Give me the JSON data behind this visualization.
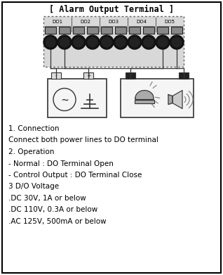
{
  "title": "[ Alarm Output Terminal ]",
  "do_labels": [
    "DO1",
    "DO2",
    "DO3",
    "DO4",
    "DO5"
  ],
  "text_lines": [
    "1. Connection",
    "Connect both power lines to DO terminal",
    "2. Operation",
    "- Normal : DO Terminal Open",
    "- Control Output : DO Terminal Close",
    "3 D/O Voltage",
    ".DC 30V, 1A or below",
    ".DC 110V, 0.3A or below",
    ".AC 125V, 500mA or below"
  ],
  "bg_color": "#ffffff",
  "border_color": "#000000",
  "text_color": "#000000",
  "title_fontsize": 8.5,
  "label_fontsize": 5.5,
  "body_fontsize": 7.5,
  "term_bg": "#cccccc",
  "wire_color": "#333333",
  "box_edge": "#333333",
  "box_face": "#f5f5f5"
}
